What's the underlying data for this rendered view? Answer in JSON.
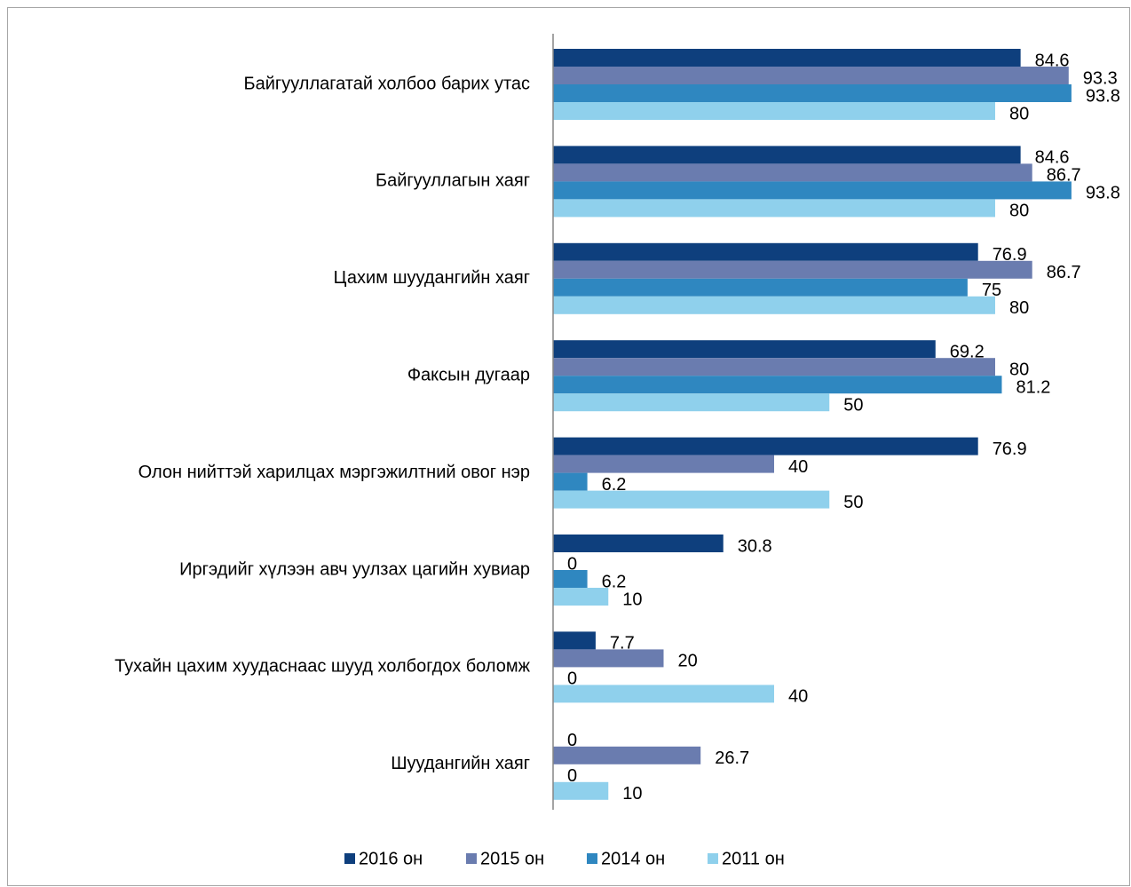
{
  "chart_data": {
    "type": "bar",
    "orientation": "horizontal",
    "categories": [
      "Байгууллагатай холбоо барих утас",
      "Байгууллагын хаяг",
      "Цахим шуудангийн хаяг",
      "Факсын дугаар",
      "Олон нийттэй харилцах мэргэжилтний овог нэр",
      "Иргэдийг хүлээн авч уулзах цагийн хувиар",
      "Тухайн цахим хуудаснаас шууд холбогдох боломж",
      "Шуудангийн хаяг"
    ],
    "series": [
      {
        "name": "2016 он",
        "color": "#0e3f7d",
        "values": [
          84.6,
          84.6,
          76.9,
          69.2,
          76.9,
          30.8,
          7.7,
          0
        ]
      },
      {
        "name": "2015 он",
        "color": "#6a7caf",
        "values": [
          93.3,
          86.7,
          86.7,
          80,
          40,
          0,
          20,
          26.7
        ]
      },
      {
        "name": "2014 он",
        "color": "#2f87c0",
        "values": [
          93.8,
          93.8,
          75,
          81.2,
          6.2,
          6.2,
          0,
          0
        ]
      },
      {
        "name": "2011 он",
        "color": "#8fd0ec",
        "values": [
          80,
          80,
          80,
          50,
          50,
          10,
          40,
          10
        ]
      }
    ],
    "xlim": [
      0,
      100
    ],
    "legend": "bottom"
  }
}
